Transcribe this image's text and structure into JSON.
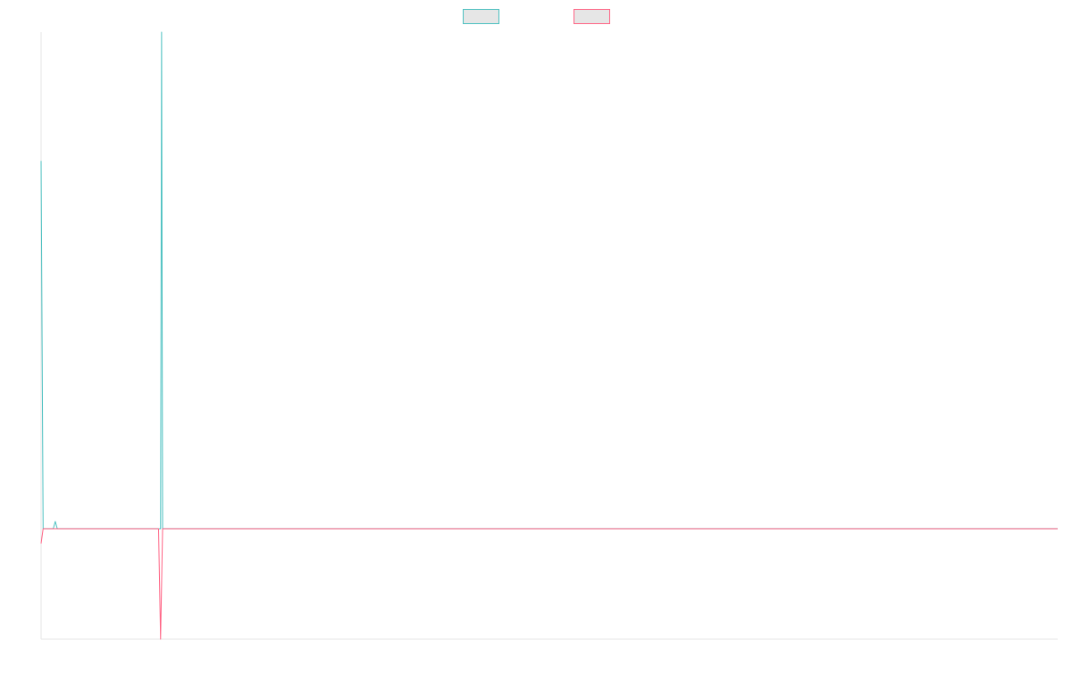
{
  "chart_data": {
    "type": "line",
    "title": "",
    "xlabel": "",
    "ylabel": "",
    "grid": false,
    "legend": "top-center",
    "x_count": 503,
    "ylim": [
      -3,
      13.5
    ],
    "series": [
      {
        "name": "",
        "color": "#4bc0c0",
        "fill": "#e6e6e6",
        "points": [
          [
            0,
            10
          ],
          [
            1,
            0
          ],
          [
            2,
            0
          ],
          [
            6,
            0
          ],
          [
            7,
            0.2
          ],
          [
            8,
            0
          ],
          [
            9,
            0
          ],
          [
            58,
            0
          ],
          [
            59,
            0
          ],
          [
            59.5,
            13.5
          ],
          [
            60,
            0
          ],
          [
            61,
            0
          ],
          [
            156,
            0
          ],
          [
            157,
            0
          ],
          [
            158,
            0
          ],
          [
            502,
            0
          ]
        ]
      },
      {
        "name": "",
        "color": "#ff6384",
        "fill": "#e6e6e6",
        "points": [
          [
            0,
            -0.4
          ],
          [
            1,
            0
          ],
          [
            2,
            0
          ],
          [
            58,
            0
          ],
          [
            59,
            -3
          ],
          [
            60,
            0
          ],
          [
            61,
            0
          ],
          [
            502,
            0
          ]
        ]
      }
    ]
  }
}
